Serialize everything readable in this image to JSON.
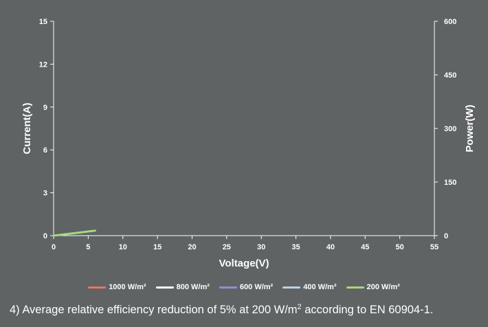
{
  "chart_data": {
    "type": "line",
    "xlabel": "Voltage(V)",
    "ylabel": "Current(A)",
    "y2label": "Power(W)",
    "xlim": [
      0,
      55
    ],
    "ylim": [
      0,
      15
    ],
    "y2lim": [
      0,
      600
    ],
    "xticks": [
      0,
      5,
      10,
      15,
      20,
      25,
      30,
      35,
      40,
      45,
      50,
      55
    ],
    "yticks": [
      0,
      3,
      6,
      9,
      12,
      15
    ],
    "y2ticks": [
      0,
      150,
      300,
      450,
      600
    ],
    "grid": false,
    "legend_position": "bottom",
    "series": [
      {
        "name": "1000 W/m²",
        "color": "#e8736c",
        "x": [],
        "y": []
      },
      {
        "name": "800 W/m²",
        "color": "#ffffff",
        "x": [],
        "y": []
      },
      {
        "name": "600 W/m²",
        "color": "#8f8fd6",
        "x": [],
        "y": []
      },
      {
        "name": "400 W/m²",
        "color": "#b7d4ea",
        "x": [],
        "y": []
      },
      {
        "name": "200 W/m²",
        "color": "#a6d785",
        "x": [
          0,
          6
        ],
        "y": [
          0,
          0.35
        ]
      }
    ]
  },
  "footnote": {
    "before": "4) Average relative efficiency reduction of 5% at 200 W/m",
    "sup": "2",
    "after": " according to EN 60904-1."
  }
}
